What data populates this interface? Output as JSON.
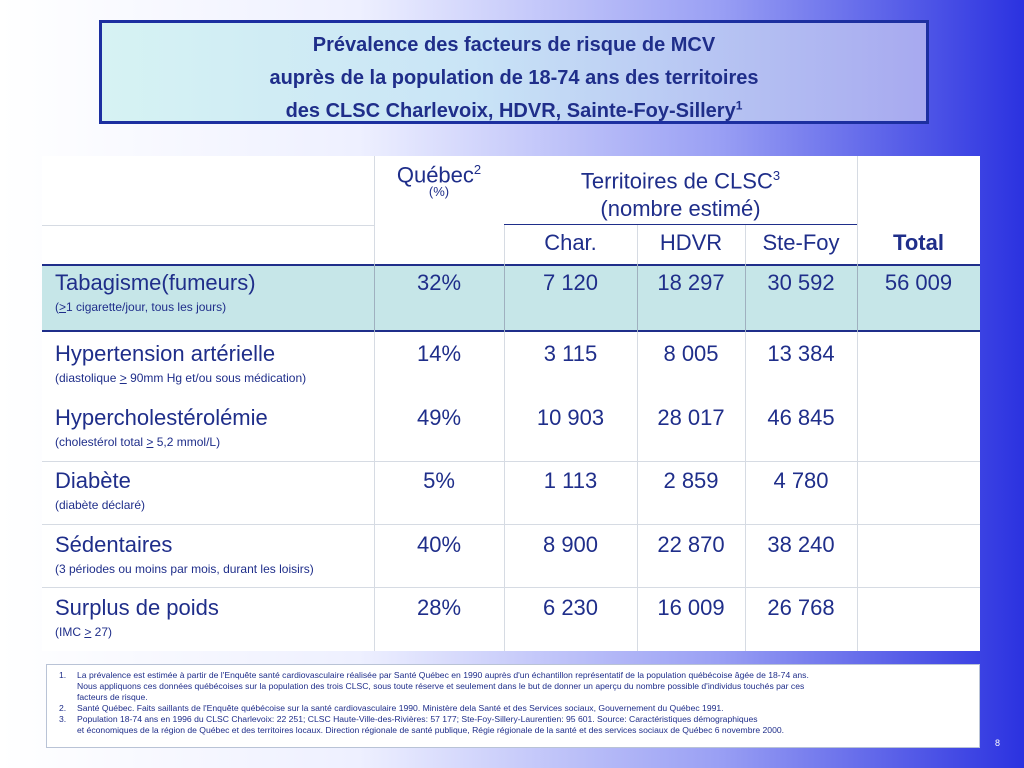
{
  "title": {
    "line1": "Prévalence des facteurs de risque de MCV",
    "line2": "auprès de la population de 18-74 ans des territoires",
    "line3": "des CLSC Charlevoix, HDVR, Sainte-Foy-Sillery",
    "line3_sup": "1"
  },
  "table": {
    "header": {
      "quebec": "Québec",
      "quebec_sup": "2",
      "quebec_unit": "(%)",
      "territoires": "Territoires de CLSC",
      "territoires_sup": "3",
      "territoires_sub": "(nombre estimé)",
      "char": "Char.",
      "hdvr": "HDVR",
      "stefoy": "Ste-Foy",
      "total": "Total"
    },
    "rows": [
      {
        "label": "Tabagisme(fumeurs)",
        "sub_pre": "(",
        "sub_u": ">",
        "sub_post": "1 cigarette/jour, tous les jours)",
        "quebec": "32%",
        "char": "7 120",
        "hdvr": "18 297",
        "stefoy": "30 592",
        "total": "56 009"
      },
      {
        "label": "Hypertension artérielle",
        "sub_pre": "(diastolique ",
        "sub_u": ">",
        "sub_post": " 90mm Hg et/ou sous médication)",
        "quebec": "14%",
        "char": "3 115",
        "hdvr": "8 005",
        "stefoy": "13 384"
      },
      {
        "label": "Hypercholestérolémie",
        "sub_pre": "(cholestérol total ",
        "sub_u": ">",
        "sub_post": " 5,2 mmol/L)",
        "quebec": "49%",
        "char": "10 903",
        "hdvr": "28 017",
        "stefoy": "46 845"
      },
      {
        "label": "Diabète",
        "sub": "(diabète déclaré)",
        "quebec": "5%",
        "char": "1 113",
        "hdvr": "2 859",
        "stefoy": "4 780"
      },
      {
        "label": "Sédentaires",
        "sub": "(3 périodes ou moins par mois, durant les loisirs)",
        "quebec": "40%",
        "char": "8 900",
        "hdvr": "22 870",
        "stefoy": "38 240"
      },
      {
        "label": "Surplus de poids",
        "sub_pre": "(IMC ",
        "sub_u": ">",
        "sub_post": "  27)",
        "quebec": "28%",
        "char": "6 230",
        "hdvr": "16 009",
        "stefoy": "26 768"
      }
    ]
  },
  "footnotes": [
    {
      "num": "1.",
      "lines": [
        "La prévalence est estimée à partir de l'Enquête santé cardiovasculaire réalisée par Santé Québec en 1990 auprès d'un échantillon représentatif de la population québécoise âgée de 18-74 ans.",
        "Nous appliquons ces données québécoises sur la population des trois CLSC, sous toute réserve et seulement dans le but de donner un aperçu du nombre possible d'individus touchés par ces",
        "facteurs de risque."
      ]
    },
    {
      "num": "2.",
      "lines": [
        "Santé Québec. Faits saillants de l'Enquête québécoise sur la santé cardiovasculaire 1990. Ministère dela Santé et des Services sociaux, Gouvernement du Québec 1991."
      ]
    },
    {
      "num": "3.",
      "lines": [
        "Population 18-74 ans en 1996 du CLSC Charlevoix: 22 251; CLSC Haute-Ville-des-Rivières: 57 177; Ste-Foy-Sillery-Laurentien: 95 601. Source: Caractéristiques démographiques",
        "et économiques de la région de Québec et des territoires locaux. Direction régionale de santé publique, Régie régionale de la  santé et des services  sociaux de Québec 6 novembre 2000."
      ]
    }
  ],
  "page_number": "8"
}
